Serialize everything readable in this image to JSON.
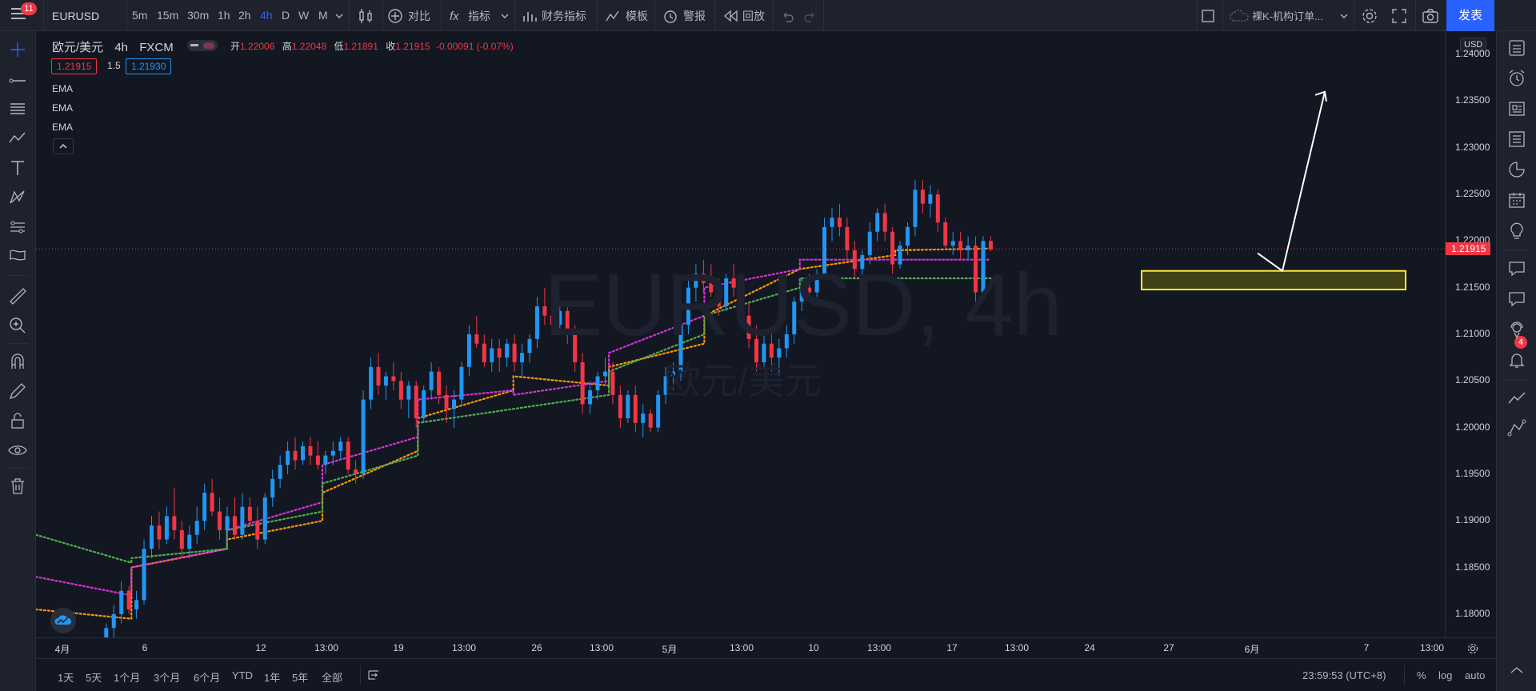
{
  "toolbar": {
    "notifications": "11",
    "symbol": "EURUSD",
    "timeframes": [
      "5m",
      "15m",
      "30m",
      "1h",
      "2h",
      "4h",
      "D",
      "W",
      "M"
    ],
    "active_timeframe": "4h",
    "compare": "对比",
    "indicators": "指标",
    "financials": "财务指标",
    "templates": "模板",
    "alerts": "警报",
    "replay": "回放",
    "layout_name": "裸K-机构订单...",
    "publish": "发表"
  },
  "legend": {
    "description": "欧元/美元",
    "interval": "4h",
    "exchange": "FXCM",
    "open_label": "开",
    "open": "1.22006",
    "high_label": "高",
    "high": "1.22048",
    "low_label": "低",
    "low": "1.21891",
    "close_label": "收",
    "close": "1.21915",
    "change": "-0.00091 (-0.07%)",
    "bid": "1.21915",
    "spread": "1.5",
    "ask": "1.21930",
    "indicators": [
      "EMA",
      "EMA",
      "EMA"
    ]
  },
  "watermark": {
    "title": "EURUSD, 4h",
    "subtitle": "欧元/美元"
  },
  "price_axis": {
    "currency": "USD",
    "ticks": [
      "1.24000",
      "1.23500",
      "1.23000",
      "1.22500",
      "1.22000",
      "1.21500",
      "1.21000",
      "1.20500",
      "1.20000",
      "1.19500",
      "1.19000",
      "1.18500",
      "1.18000"
    ],
    "last_price": "1.21915"
  },
  "time_axis": {
    "ticks": [
      "4月",
      "6",
      "12",
      "13:00",
      "19",
      "13:00",
      "26",
      "13:00",
      "5月",
      "13:00",
      "10",
      "13:00",
      "17",
      "13:00",
      "24",
      "27",
      "6月",
      "7",
      "13:00"
    ]
  },
  "bottom": {
    "ranges": [
      "1天",
      "5天",
      "1个月",
      "3个月",
      "6个月",
      "YTD",
      "1年",
      "5年",
      "全部"
    ],
    "clock": "23:59:53 (UTC+8)",
    "percent": "%",
    "log": "log",
    "auto": "auto"
  },
  "right_badge": "4",
  "colors": {
    "up": "#2196f3",
    "down": "#f23645",
    "ema_fast": "#ff9800",
    "ema_mid": "#d633d6",
    "ema_slow": "#4caf50",
    "zone_border": "#ffeb3b",
    "zone_fill": "#4a4a14",
    "accent": "#2962ff"
  },
  "chart_data": {
    "type": "candlestick",
    "instrument": "EURUSD",
    "interval": "4h",
    "ylim": [
      1.1775,
      1.2425
    ],
    "candles": [
      [
        1.1738,
        1.1752,
        1.1728,
        1.1745
      ],
      [
        1.1745,
        1.176,
        1.1735,
        1.174
      ],
      [
        1.174,
        1.1768,
        1.1735,
        1.1762
      ],
      [
        1.1762,
        1.1775,
        1.1748,
        1.175
      ],
      [
        1.175,
        1.179,
        1.1745,
        1.1785
      ],
      [
        1.1785,
        1.181,
        1.1775,
        1.18
      ],
      [
        1.18,
        1.1835,
        1.179,
        1.1825
      ],
      [
        1.1825,
        1.183,
        1.18,
        1.1805
      ],
      [
        1.1805,
        1.1825,
        1.1795,
        1.1815
      ],
      [
        1.1815,
        1.188,
        1.181,
        1.187
      ],
      [
        1.187,
        1.1905,
        1.186,
        1.1895
      ],
      [
        1.1895,
        1.191,
        1.187,
        1.188
      ],
      [
        1.188,
        1.1915,
        1.1875,
        1.1905
      ],
      [
        1.1905,
        1.1935,
        1.188,
        1.189
      ],
      [
        1.189,
        1.19,
        1.186,
        1.187
      ],
      [
        1.187,
        1.1895,
        1.186,
        1.1885
      ],
      [
        1.1885,
        1.1915,
        1.1875,
        1.19
      ],
      [
        1.19,
        1.194,
        1.189,
        1.193
      ],
      [
        1.193,
        1.1945,
        1.1905,
        1.191
      ],
      [
        1.191,
        1.1925,
        1.188,
        1.189
      ],
      [
        1.189,
        1.1915,
        1.188,
        1.1905
      ],
      [
        1.1905,
        1.1925,
        1.188,
        1.1885
      ],
      [
        1.1885,
        1.193,
        1.188,
        1.1915
      ],
      [
        1.1915,
        1.1925,
        1.1895,
        1.19
      ],
      [
        1.19,
        1.1915,
        1.187,
        1.188
      ],
      [
        1.188,
        1.193,
        1.1875,
        1.1925
      ],
      [
        1.1925,
        1.1955,
        1.1915,
        1.1945
      ],
      [
        1.1945,
        1.197,
        1.1935,
        1.196
      ],
      [
        1.196,
        1.1985,
        1.195,
        1.1975
      ],
      [
        1.1975,
        1.199,
        1.1955,
        1.1965
      ],
      [
        1.1965,
        1.1985,
        1.196,
        1.198
      ],
      [
        1.198,
        1.199,
        1.196,
        1.197
      ],
      [
        1.197,
        1.1985,
        1.1955,
        1.196
      ],
      [
        1.196,
        1.1975,
        1.195,
        1.197
      ],
      [
        1.197,
        1.1985,
        1.196,
        1.1975
      ],
      [
        1.1975,
        1.199,
        1.1965,
        1.1985
      ],
      [
        1.1985,
        1.199,
        1.195,
        1.1955
      ],
      [
        1.1955,
        1.1965,
        1.194,
        1.195
      ],
      [
        1.195,
        1.204,
        1.1945,
        1.203
      ],
      [
        1.203,
        1.2075,
        1.202,
        1.2065
      ],
      [
        1.2065,
        1.208,
        1.2035,
        1.2045
      ],
      [
        1.2045,
        1.206,
        1.203,
        1.2055
      ],
      [
        1.2055,
        1.207,
        1.204,
        1.205
      ],
      [
        1.205,
        1.206,
        1.202,
        1.203
      ],
      [
        1.203,
        1.205,
        1.201,
        1.2045
      ],
      [
        1.2045,
        1.205,
        1.2,
        1.201
      ],
      [
        1.201,
        1.2045,
        1.2005,
        1.204
      ],
      [
        1.204,
        1.207,
        1.203,
        1.206
      ],
      [
        1.206,
        1.2065,
        1.2025,
        1.2035
      ],
      [
        1.2035,
        1.2045,
        1.2005,
        1.202
      ],
      [
        1.202,
        1.204,
        1.2,
        1.203
      ],
      [
        1.203,
        1.207,
        1.2025,
        1.2065
      ],
      [
        1.2065,
        1.211,
        1.2055,
        1.21
      ],
      [
        1.21,
        1.212,
        1.2085,
        1.209
      ],
      [
        1.209,
        1.21,
        1.2065,
        1.207
      ],
      [
        1.207,
        1.2095,
        1.206,
        1.2085
      ],
      [
        1.2085,
        1.2095,
        1.206,
        1.2075
      ],
      [
        1.2075,
        1.2095,
        1.2065,
        1.209
      ],
      [
        1.209,
        1.21,
        1.206,
        1.207
      ],
      [
        1.207,
        1.209,
        1.2055,
        1.208
      ],
      [
        1.208,
        1.21,
        1.207,
        1.2095
      ],
      [
        1.2095,
        1.214,
        1.2085,
        1.213
      ],
      [
        1.213,
        1.215,
        1.211,
        1.212
      ],
      [
        1.212,
        1.2135,
        1.21,
        1.211
      ],
      [
        1.211,
        1.213,
        1.21,
        1.2125
      ],
      [
        1.2125,
        1.213,
        1.209,
        1.21
      ],
      [
        1.21,
        1.211,
        1.206,
        1.207
      ],
      [
        1.207,
        1.208,
        1.2015,
        1.2025
      ],
      [
        1.2025,
        1.205,
        1.2015,
        1.204
      ],
      [
        1.204,
        1.206,
        1.203,
        1.2055
      ],
      [
        1.2055,
        1.2075,
        1.2045,
        1.206
      ],
      [
        1.206,
        1.207,
        1.2025,
        1.2035
      ],
      [
        1.2035,
        1.2045,
        1.2,
        1.201
      ],
      [
        1.201,
        1.204,
        1.2005,
        1.2035
      ],
      [
        1.2035,
        1.2045,
        1.1995,
        1.2005
      ],
      [
        1.2005,
        1.2025,
        1.199,
        1.2015
      ],
      [
        1.2015,
        1.202,
        1.1995,
        1.2
      ],
      [
        1.2,
        1.204,
        1.1995,
        1.2035
      ],
      [
        1.2035,
        1.2065,
        1.2025,
        1.2055
      ],
      [
        1.2055,
        1.207,
        1.204,
        1.206
      ],
      [
        1.206,
        1.212,
        1.205,
        1.211
      ],
      [
        1.211,
        1.216,
        1.21,
        1.215
      ],
      [
        1.215,
        1.2175,
        1.2135,
        1.2165
      ],
      [
        1.2165,
        1.218,
        1.2145,
        1.2155
      ],
      [
        1.2155,
        1.2175,
        1.214,
        1.2145
      ],
      [
        1.2145,
        1.216,
        1.212,
        1.213
      ],
      [
        1.213,
        1.2165,
        1.2125,
        1.216
      ],
      [
        1.216,
        1.2175,
        1.214,
        1.215
      ],
      [
        1.215,
        1.2155,
        1.211,
        1.212
      ],
      [
        1.212,
        1.2135,
        1.2085,
        1.2095
      ],
      [
        1.2095,
        1.211,
        1.206,
        1.207
      ],
      [
        1.207,
        1.21,
        1.2065,
        1.209
      ],
      [
        1.209,
        1.21,
        1.206,
        1.2075
      ],
      [
        1.2075,
        1.2095,
        1.2055,
        1.2085
      ],
      [
        1.2085,
        1.211,
        1.2075,
        1.21
      ],
      [
        1.21,
        1.214,
        1.209,
        1.2135
      ],
      [
        1.2135,
        1.216,
        1.2125,
        1.215
      ],
      [
        1.215,
        1.2165,
        1.2135,
        1.2145
      ],
      [
        1.2145,
        1.217,
        1.214,
        1.2165
      ],
      [
        1.2165,
        1.2225,
        1.216,
        1.2215
      ],
      [
        1.2215,
        1.2235,
        1.22,
        1.2225
      ],
      [
        1.2225,
        1.224,
        1.2205,
        1.2215
      ],
      [
        1.2215,
        1.2225,
        1.218,
        1.219
      ],
      [
        1.219,
        1.22,
        1.216,
        1.217
      ],
      [
        1.217,
        1.219,
        1.216,
        1.2185
      ],
      [
        1.2185,
        1.222,
        1.2175,
        1.221
      ],
      [
        1.221,
        1.2235,
        1.22,
        1.223
      ],
      [
        1.223,
        1.224,
        1.22,
        1.221
      ],
      [
        1.221,
        1.2215,
        1.2165,
        1.2175
      ],
      [
        1.2175,
        1.22,
        1.217,
        1.2195
      ],
      [
        1.2195,
        1.222,
        1.2185,
        1.2215
      ],
      [
        1.2215,
        1.2265,
        1.2205,
        1.2255
      ],
      [
        1.2255,
        1.2265,
        1.223,
        1.224
      ],
      [
        1.224,
        1.226,
        1.2225,
        1.225
      ],
      [
        1.225,
        1.2255,
        1.221,
        1.222
      ],
      [
        1.222,
        1.2225,
        1.219,
        1.2195
      ],
      [
        1.2195,
        1.221,
        1.2185,
        1.22
      ],
      [
        1.22,
        1.221,
        1.218,
        1.219
      ],
      [
        1.219,
        1.2205,
        1.218,
        1.2195
      ],
      [
        1.2195,
        1.2205,
        1.2135,
        1.2145
      ],
      [
        1.2145,
        1.2205,
        1.214,
        1.22
      ],
      [
        1.22,
        1.2205,
        1.2189,
        1.2191
      ]
    ],
    "ema_fast": [
      [
        1.1805,
        1.1795
      ],
      [
        1.185,
        1.187
      ],
      [
        1.188,
        1.19
      ],
      [
        1.193,
        1.1975
      ],
      [
        1.201,
        1.204
      ],
      [
        1.2055,
        1.2045
      ],
      [
        1.2065,
        1.209
      ],
      [
        1.212,
        1.217
      ],
      [
        1.217,
        1.2185
      ],
      [
        1.219,
        1.2192
      ]
    ],
    "ema_mid": [
      [
        1.184,
        1.182
      ],
      [
        1.185,
        1.187
      ],
      [
        1.189,
        1.192
      ],
      [
        1.196,
        1.199
      ],
      [
        1.203,
        1.204
      ],
      [
        1.2035,
        1.205
      ],
      [
        1.208,
        1.212
      ],
      [
        1.215,
        1.217
      ],
      [
        1.218,
        1.218
      ],
      [
        1.218,
        1.218
      ]
    ],
    "ema_slow": [
      [
        1.1885,
        1.1855
      ],
      [
        1.186,
        1.187
      ],
      [
        1.189,
        1.191
      ],
      [
        1.194,
        1.197
      ],
      [
        1.2005,
        1.202
      ],
      [
        1.202,
        1.2035
      ],
      [
        1.206,
        1.21
      ],
      [
        1.212,
        1.215
      ],
      [
        1.216,
        1.216
      ],
      [
        1.216,
        1.216
      ]
    ],
    "last_price": 1.21915,
    "annotations": {
      "zone": {
        "from": 1.2148,
        "to": 1.2168
      },
      "arrow": {
        "from": 1.2168,
        "to": 1.236
      }
    }
  }
}
